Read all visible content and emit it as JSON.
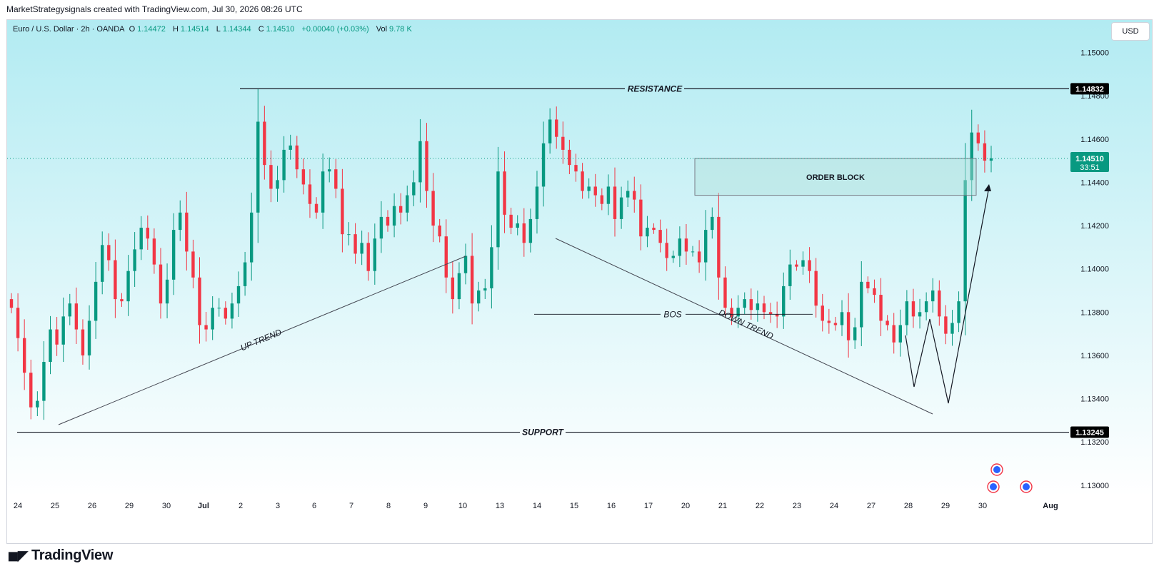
{
  "watermark": "MarketStrategysignals created with TradingView.com, Jul 30, 2026 08:26 UTC",
  "legend": {
    "symbol": "Euro / U.S. Dollar · 2h · OANDA",
    "open_label": "O",
    "open": "1.14472",
    "high_label": "H",
    "high": "1.14514",
    "low_label": "L",
    "low": "1.14344",
    "close_label": "C",
    "close": "1.14510",
    "change": "+0.00040 (+0.03%)",
    "volume_label": "Vol",
    "volume": "9.78 K"
  },
  "currency_button": "USD",
  "brand": "TradingView",
  "colors": {
    "up": "#089981",
    "down": "#f23645",
    "background_top": "#b2ebf2",
    "background_bottom": "#ffffff",
    "text": "#131722"
  },
  "chart_data": {
    "type": "candlestick",
    "symbol": "EURUSD",
    "timeframe": "2h",
    "y_axis": {
      "min": 1.1295,
      "max": 1.1515,
      "ticks": [
        "1.15000",
        "1.14800",
        "1.14600",
        "1.14400",
        "1.14200",
        "1.14000",
        "1.13800",
        "1.13600",
        "1.13400",
        "1.13200",
        "1.13000"
      ]
    },
    "x_axis": {
      "ticks": [
        "24",
        "25",
        "26",
        "29",
        "30",
        "Jul",
        "2",
        "3",
        "6",
        "7",
        "8",
        "9",
        "10",
        "13",
        "14",
        "15",
        "16",
        "17",
        "20",
        "21",
        "22",
        "23",
        "24",
        "27",
        "28",
        "29",
        "30",
        "Aug"
      ]
    },
    "closes": [
      1.1382,
      1.1368,
      1.1352,
      1.1336,
      1.1339,
      1.1357,
      1.1372,
      1.1365,
      1.1378,
      1.1384,
      1.1372,
      1.136,
      1.1376,
      1.1394,
      1.1411,
      1.1404,
      1.1386,
      1.1385,
      1.1399,
      1.1409,
      1.1419,
      1.1414,
      1.1402,
      1.1384,
      1.1395,
      1.1418,
      1.1426,
      1.1408,
      1.1396,
      1.1374,
      1.1372,
      1.1382,
      1.1382,
      1.1377,
      1.1384,
      1.1392,
      1.1403,
      1.1426,
      1.1468,
      1.1448,
      1.1437,
      1.1441,
      1.1455,
      1.1457,
      1.1446,
      1.1439,
      1.143,
      1.1426,
      1.1445,
      1.1446,
      1.1437,
      1.1416,
      1.1416,
      1.1407,
      1.1412,
      1.1399,
      1.1414,
      1.1424,
      1.142,
      1.1429,
      1.1426,
      1.1434,
      1.144,
      1.1459,
      1.1436,
      1.142,
      1.1415,
      1.1396,
      1.1386,
      1.1398,
      1.1406,
      1.1384,
      1.139,
      1.1391,
      1.141,
      1.1445,
      1.1425,
      1.1419,
      1.1421,
      1.1412,
      1.1423,
      1.1438,
      1.1458,
      1.1469,
      1.1461,
      1.1455,
      1.1448,
      1.1445,
      1.1436,
      1.1438,
      1.1434,
      1.143,
      1.1438,
      1.1423,
      1.1433,
      1.1436,
      1.1432,
      1.1415,
      1.1419,
      1.1418,
      1.1412,
      1.1405,
      1.1406,
      1.1414,
      1.1408,
      1.1408,
      1.1403,
      1.1418,
      1.1424,
      1.1396,
      1.1382,
      1.1378,
      1.1382,
      1.1386,
      1.1381,
      1.1384,
      1.138,
      1.1379,
      1.1378,
      1.1392,
      1.1402,
      1.1401,
      1.1404,
      1.1399,
      1.1383,
      1.1376,
      1.1375,
      1.1374,
      1.138,
      1.1367,
      1.1373,
      1.1394,
      1.1391,
      1.1388,
      1.1376,
      1.1374,
      1.1366,
      1.1374,
      1.1385,
      1.1378,
      1.138,
      1.1385,
      1.139,
      1.1378,
      1.137,
      1.1375,
      1.1385,
      1.1441,
      1.1463,
      1.1458,
      1.145,
      1.1451
    ],
    "annotations": {
      "horizontal_lines": [
        {
          "label": "RESISTANCE",
          "price": 1.14832,
          "price_label": "1.14832"
        },
        {
          "label": "SUPPORT",
          "price": 1.13245,
          "price_label": "1.13245"
        },
        {
          "label": "BOS",
          "price": 1.1379
        }
      ],
      "trendlines": [
        {
          "label": "UP TREND"
        },
        {
          "label": "DOWN TREND"
        }
      ],
      "zones": [
        {
          "label": "ORDER BLOCK",
          "top": 1.1451,
          "bottom": 1.1434
        }
      ],
      "current_price": {
        "price": 1.1451,
        "price_label": "1.14510",
        "countdown": "33:51"
      }
    }
  }
}
